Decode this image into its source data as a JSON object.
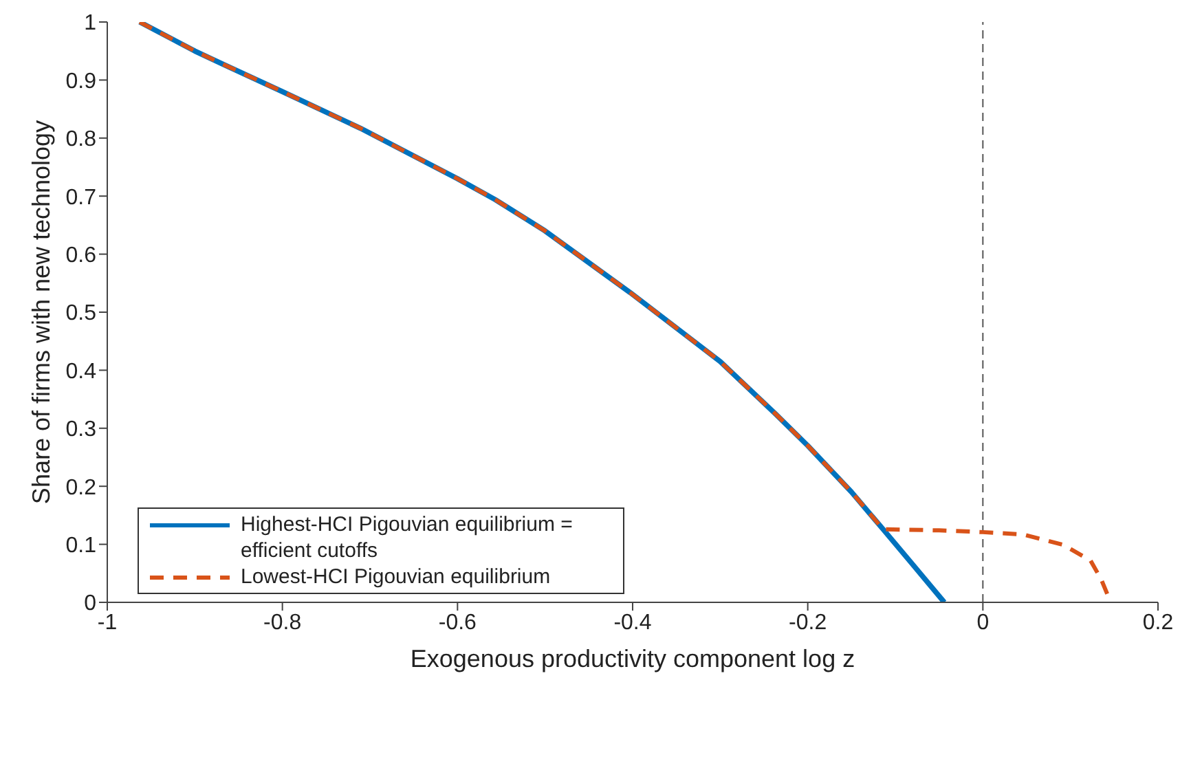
{
  "chart_data": {
    "type": "line",
    "xlabel": "Exogenous productivity component log z",
    "ylabel": "Share of firms with new technology",
    "xlim": [
      -1,
      0.2
    ],
    "xticks": [
      -1,
      -0.8,
      -0.6,
      -0.4,
      -0.2,
      0,
      0.2
    ],
    "ylim": [
      0,
      1
    ],
    "yticks": [
      0,
      0.1,
      0.2,
      0.3,
      0.4,
      0.5,
      0.6,
      0.7,
      0.8,
      0.9,
      1
    ],
    "grid": false,
    "legend": "bottom left",
    "marker": "none",
    "ref_lines": [
      {
        "axis": "x",
        "value": 0,
        "color": "#555555",
        "line_style": "dashed"
      }
    ],
    "series": [
      {
        "name": "Highest-HCI Pigouvian equilibrium = efficient cutoffs",
        "color": "#0072bd",
        "line_style": "solid",
        "x": [
          -0.963,
          -0.9,
          -0.866,
          -0.8,
          -0.711,
          -0.6,
          -0.557,
          -0.5,
          -0.403,
          -0.3,
          -0.237,
          -0.2,
          -0.15,
          -0.114,
          -0.08,
          -0.044
        ],
        "values": [
          1,
          0.95,
          0.926,
          0.88,
          0.817,
          0.73,
          0.694,
          0.64,
          0.534,
          0.415,
          0.325,
          0.27,
          0.19,
          0.126,
          0.065,
          0
        ]
      },
      {
        "name": "Lowest-HCI Pigouvian equilibrium",
        "color": "#d95319",
        "line_style": "dashed",
        "x": [
          -0.963,
          -0.9,
          -0.866,
          -0.8,
          -0.711,
          -0.6,
          -0.557,
          -0.5,
          -0.403,
          -0.3,
          -0.237,
          -0.2,
          -0.15,
          -0.114,
          -0.05,
          0,
          0.046,
          0.092,
          0.123,
          0.135,
          0.146
        ],
        "values": [
          1,
          0.95,
          0.926,
          0.88,
          0.817,
          0.73,
          0.694,
          0.64,
          0.534,
          0.415,
          0.325,
          0.27,
          0.19,
          0.126,
          0.124,
          0.121,
          0.117,
          0.099,
          0.072,
          0.04,
          0
        ]
      }
    ]
  }
}
